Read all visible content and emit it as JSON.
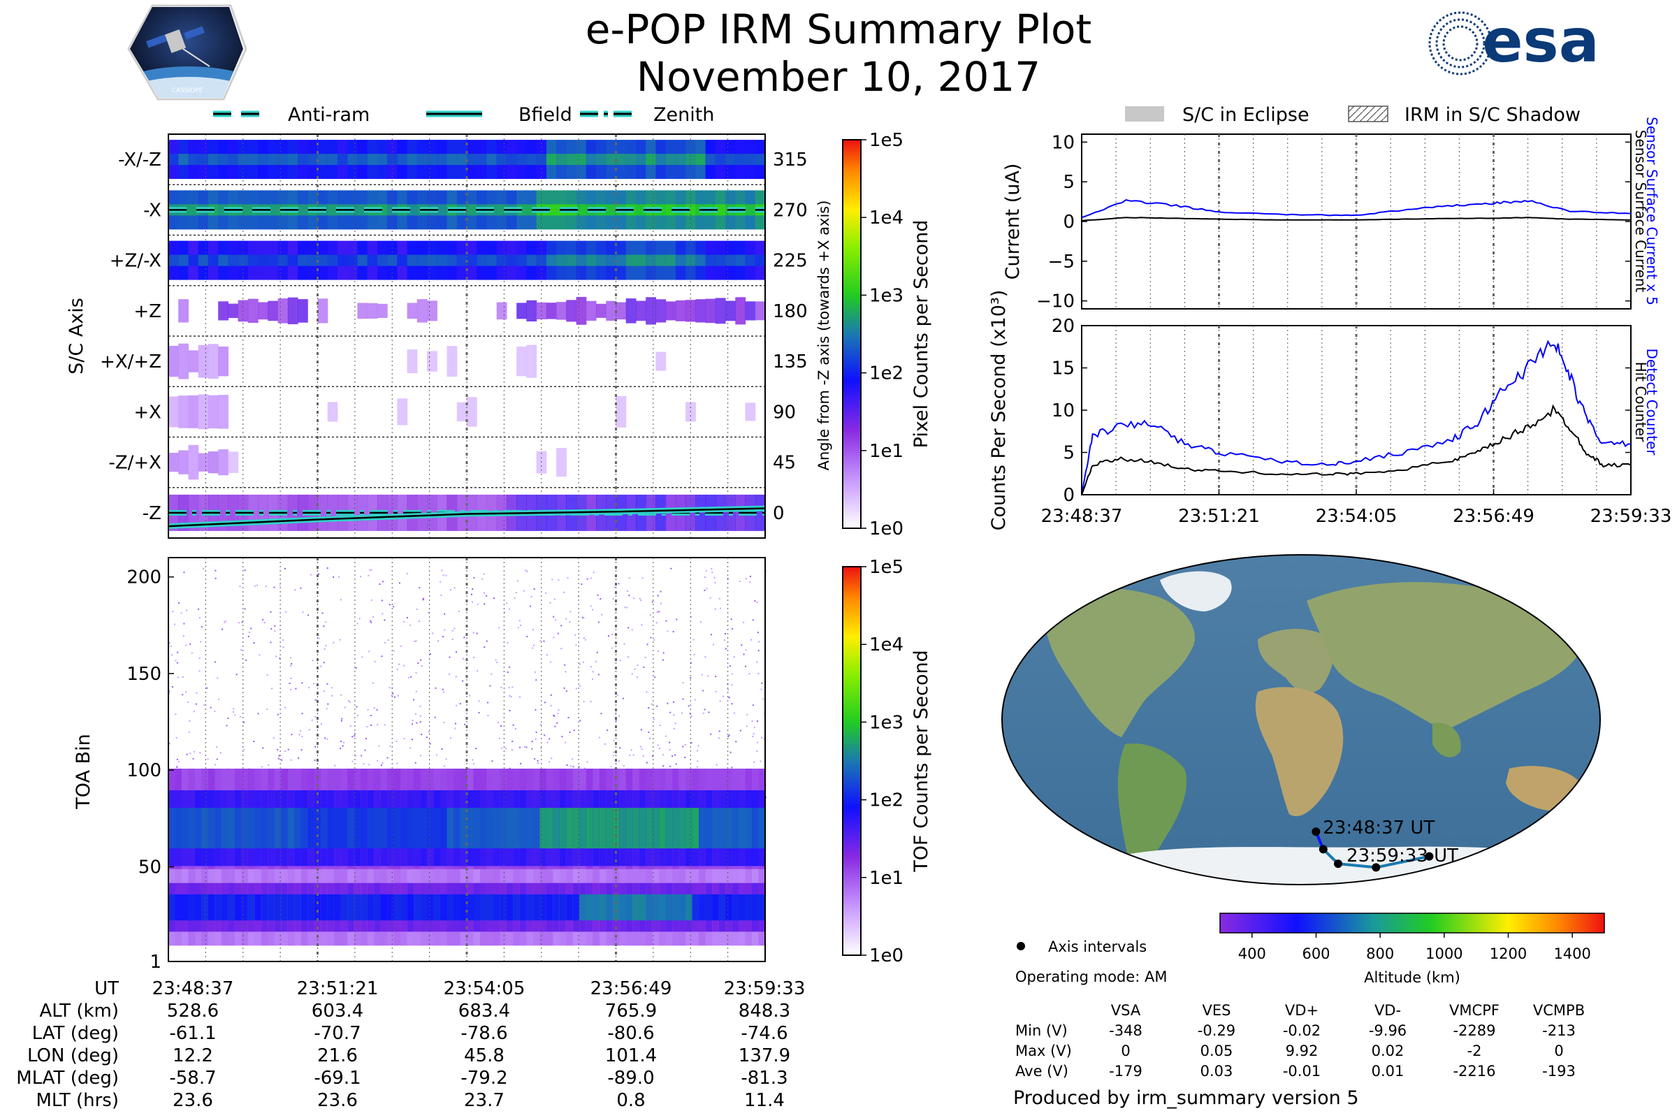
{
  "header": {
    "title": "e-POP IRM Summary Plot",
    "date": "November 10, 2017",
    "mission_logo_text": "CASSIOPE",
    "agency_logo_text": "esa"
  },
  "colors": {
    "antiram": "#008080",
    "bfield": "#000000",
    "zenith": "#00a0a0",
    "current_sensor": "#0000ff",
    "current_surface": "#000000",
    "detect": "#0000ff",
    "hit": "#000000",
    "eclipse": "#c8c8c8"
  },
  "chart_data": [
    {
      "type": "heatmap",
      "id": "sc-axis",
      "ylabel": "S/C Axis",
      "yticks": [
        "-X/-Z",
        "-X",
        "+Z/-X",
        "+Z",
        "+X/+Z",
        "+X",
        "-Z/+X",
        "-Z"
      ],
      "right_ylabel": "Angle from -Z axis (towards +X axis)",
      "right_yticks": [
        "315",
        "270",
        "225",
        "180",
        "135",
        "90",
        "45",
        "0"
      ],
      "colorbar_label": "Pixel Counts per Second",
      "colorbar_ticks": [
        "1e0",
        "1e1",
        "1e2",
        "1e3",
        "1e4",
        "1e5"
      ],
      "legend": [
        "Anti-ram",
        "Bfield",
        "Zenith"
      ],
      "legend_placement": "top",
      "overlay_series": [
        {
          "name": "Anti-ram",
          "x": [
            "23:48:37",
            "23:59:33"
          ],
          "y": [
            270,
            270
          ]
        },
        {
          "name": "Bfield",
          "x": [
            "23:48:37",
            "23:51:21",
            "23:54:05",
            "23:56:49",
            "23:59:33"
          ],
          "y": [
            -12,
            -6,
            -1,
            1,
            4
          ]
        },
        {
          "name": "Zenith",
          "x": [
            "23:48:37",
            "23:59:33"
          ],
          "y": [
            0,
            0
          ]
        }
      ],
      "band_intensity_log10": [
        1.9,
        2.3,
        1.8,
        1.0,
        0.5,
        0.5,
        0.5,
        1.3
      ]
    },
    {
      "type": "heatmap",
      "id": "toa",
      "ylabel": "TOA Bin",
      "yticks": [
        "1",
        "50",
        "100",
        "150",
        "200"
      ],
      "ylim": [
        1,
        210
      ],
      "colorbar_label": "TOF Counts per Second",
      "colorbar_ticks": [
        "1e0",
        "1e1",
        "1e2",
        "1e3",
        "1e4",
        "1e5"
      ],
      "bands": [
        {
          "center": 70,
          "width": 14,
          "peak_log10": 2.3
        },
        {
          "center": 29,
          "width": 9,
          "peak_log10": 2.0
        }
      ]
    },
    {
      "type": "line",
      "id": "current",
      "ylabel": "Current (uA)",
      "ylim": [
        -11,
        11
      ],
      "yticks": [
        "10",
        "5",
        "0",
        "−5",
        "−10"
      ],
      "right_labels": [
        "Sensor Surface Current x 5",
        "Sensor Surface Current"
      ],
      "legend": [
        "S/C in Eclipse",
        "IRM in S/C Shadow"
      ],
      "series": [
        {
          "name": "Sensor Surface Current x 5",
          "x": [
            "23:48:37",
            "23:49:30",
            "23:50:30",
            "23:51:21",
            "23:52:30",
            "23:53:30",
            "23:54:05",
            "23:55:00",
            "23:56:00",
            "23:56:49",
            "23:57:30",
            "23:58:20",
            "23:59:33"
          ],
          "values": [
            0.5,
            2.6,
            2.0,
            1.2,
            0.9,
            0.8,
            0.8,
            1.4,
            2.0,
            2.3,
            2.6,
            1.3,
            1.0
          ]
        },
        {
          "name": "Sensor Surface Current",
          "x": [
            "23:48:37",
            "23:49:30",
            "23:50:30",
            "23:51:21",
            "23:52:30",
            "23:53:30",
            "23:54:05",
            "23:55:00",
            "23:56:00",
            "23:56:49",
            "23:57:30",
            "23:58:20",
            "23:59:33"
          ],
          "values": [
            0.1,
            0.5,
            0.4,
            0.3,
            0.2,
            0.2,
            0.2,
            0.3,
            0.4,
            0.4,
            0.5,
            0.3,
            0.2
          ]
        }
      ]
    },
    {
      "type": "line",
      "id": "counts",
      "ylabel": "Counts Per Second (x10³)",
      "ylim": [
        0,
        20
      ],
      "yticks": [
        "20",
        "15",
        "10",
        "5",
        "0"
      ],
      "xticks": [
        "23:48:37",
        "23:51:21",
        "23:54:05",
        "23:56:49",
        "23:59:33"
      ],
      "right_labels": [
        "Detect Counter",
        "Hit Counter"
      ],
      "series": [
        {
          "name": "Detect Counter",
          "x": [
            "23:48:37",
            "23:48:50",
            "23:49:20",
            "23:50:00",
            "23:50:40",
            "23:51:21",
            "23:52:30",
            "23:53:30",
            "23:54:05",
            "23:55:00",
            "23:56:00",
            "23:56:30",
            "23:57:00",
            "23:57:30",
            "23:58:00",
            "23:58:20",
            "23:58:40",
            "23:59:00",
            "23:59:33"
          ],
          "values": [
            0,
            7.0,
            8.0,
            8.5,
            6.0,
            5.0,
            4.0,
            3.5,
            4.0,
            5.0,
            6.5,
            8.5,
            12.5,
            15.0,
            18.5,
            14.0,
            9.0,
            6.0,
            6.0
          ]
        },
        {
          "name": "Hit Counter",
          "x": [
            "23:48:37",
            "23:48:50",
            "23:49:20",
            "23:50:00",
            "23:50:40",
            "23:51:21",
            "23:52:30",
            "23:53:30",
            "23:54:05",
            "23:55:00",
            "23:56:00",
            "23:56:30",
            "23:57:00",
            "23:57:30",
            "23:58:00",
            "23:58:20",
            "23:58:40",
            "23:59:00",
            "23:59:33"
          ],
          "values": [
            0,
            3.5,
            4.2,
            4.0,
            3.0,
            2.8,
            2.5,
            2.4,
            2.5,
            3.0,
            4.0,
            5.0,
            6.5,
            8.0,
            10.0,
            8.0,
            5.0,
            3.5,
            3.5
          ]
        }
      ]
    },
    {
      "type": "scatter",
      "id": "map",
      "colorbar_label": "Altitude (km)",
      "colorbar_ticks": [
        "400",
        "600",
        "800",
        "1000",
        "1200",
        "1400"
      ],
      "legend": [
        "Axis intervals"
      ],
      "track_start_label": "23:48:37 UT",
      "track_end_label": "23:59:33 UT",
      "lat": [
        -61.1,
        -70.7,
        -78.6,
        -80.6,
        -74.6
      ],
      "lon": [
        12.2,
        21.6,
        45.8,
        101.4,
        137.9
      ],
      "altitude": [
        528.6,
        603.4,
        683.4,
        765.9,
        848.3
      ]
    }
  ],
  "ephemeris": {
    "row_labels": [
      "UT",
      "ALT (km)",
      "LAT (deg)",
      "LON (deg)",
      "MLAT (deg)",
      "MLT (hrs)"
    ],
    "columns": [
      [
        "23:48:37",
        "528.6",
        "-61.1",
        "12.2",
        "-58.7",
        "23.6"
      ],
      [
        "23:51:21",
        "603.4",
        "-70.7",
        "21.6",
        "-69.1",
        "23.6"
      ],
      [
        "23:54:05",
        "683.4",
        "-78.6",
        "45.8",
        "-79.2",
        "23.7"
      ],
      [
        "23:56:49",
        "765.9",
        "-80.6",
        "101.4",
        "-89.0",
        "0.8"
      ],
      [
        "23:59:33",
        "848.3",
        "-74.6",
        "137.9",
        "-81.3",
        "11.4"
      ]
    ]
  },
  "info": {
    "operating_mode": "Operating mode: AM",
    "voltage_headers": [
      "VSA",
      "VES",
      "VD+",
      "VD-",
      "VMCPF",
      "VCMPB"
    ],
    "voltage_rows": [
      {
        "label": "Min (V)",
        "values": [
          "-348",
          "-0.29",
          "-0.02",
          "-9.96",
          "-2289",
          "-213"
        ]
      },
      {
        "label": "Max (V)",
        "values": [
          "0",
          "0.05",
          "9.92",
          "0.02",
          "-2",
          "0"
        ]
      },
      {
        "label": "Ave (V)",
        "values": [
          "-179",
          "0.03",
          "-0.01",
          "0.01",
          "-2216",
          "-193"
        ]
      }
    ],
    "footer": "Produced by irm_summary version 5"
  }
}
